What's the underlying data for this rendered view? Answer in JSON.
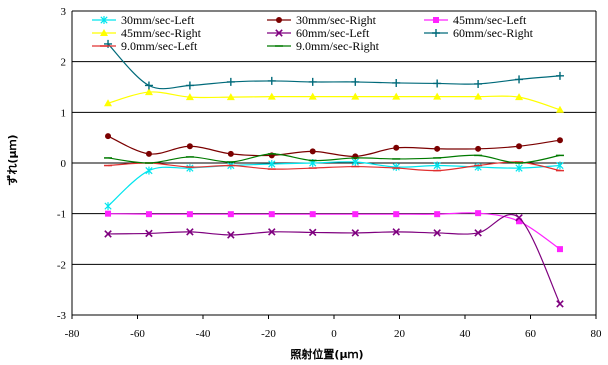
{
  "chart_data": {
    "type": "line",
    "xlabel": "照射位置(μｍ)",
    "ylabel": "ずれ(μｍ)",
    "xlim": [
      -80,
      80
    ],
    "ylim": [
      -3,
      3
    ],
    "xticks": [
      "-80",
      "-60",
      "-40",
      "-20",
      "0",
      "20",
      "40",
      "60",
      "80"
    ],
    "yticks": [
      "3",
      "2",
      "1",
      "0",
      "-1",
      "-2",
      "-3"
    ],
    "grid": "horizontal",
    "legend_position": "top",
    "x": [
      -69,
      -56.5,
      -44,
      -31.5,
      -19,
      -6.5,
      6.5,
      19,
      31.5,
      44,
      56.5,
      69
    ],
    "series": [
      {
        "name": "30mm/sec-Left",
        "color": "#00e5ee",
        "marker": "asterisk",
        "values": [
          -0.85,
          -0.15,
          -0.1,
          -0.05,
          -0.02,
          0.0,
          0.02,
          -0.08,
          -0.05,
          -0.08,
          -0.1,
          -0.05
        ]
      },
      {
        "name": "30mm/sec-Right",
        "color": "#7b0000",
        "marker": "circle",
        "values": [
          0.53,
          0.18,
          0.33,
          0.18,
          0.15,
          0.23,
          0.13,
          0.3,
          0.28,
          0.28,
          0.33,
          0.45
        ]
      },
      {
        "name": "45mm/sec-Left",
        "color": "#ff22ff",
        "marker": "square",
        "values": [
          -1.0,
          -1.01,
          -1.01,
          -1.01,
          -1.01,
          -1.01,
          -1.01,
          -1.01,
          -1.01,
          -0.99,
          -1.15,
          -1.7
        ]
      },
      {
        "name": "45mm/sec-Right",
        "color": "#ffff00",
        "marker": "triangle",
        "values": [
          1.18,
          1.4,
          1.3,
          1.3,
          1.31,
          1.31,
          1.31,
          1.31,
          1.31,
          1.31,
          1.3,
          1.05
        ]
      },
      {
        "name": "60mm/sec-Left",
        "color": "#7f007f",
        "marker": "cross",
        "values": [
          -1.4,
          -1.39,
          -1.36,
          -1.42,
          -1.36,
          -1.37,
          -1.38,
          -1.36,
          -1.38,
          -1.38,
          -1.08,
          -2.78
        ]
      },
      {
        "name": "60mm/sec-Right",
        "color": "#006a7a",
        "marker": "plus",
        "values": [
          2.35,
          1.53,
          1.53,
          1.6,
          1.62,
          1.6,
          1.6,
          1.58,
          1.57,
          1.56,
          1.65,
          1.72
        ]
      },
      {
        "name": "9.0mm/sec-Left",
        "color": "#e03030",
        "marker": "dash",
        "values": [
          -0.05,
          0.0,
          -0.08,
          -0.05,
          -0.12,
          -0.1,
          -0.07,
          -0.1,
          -0.15,
          -0.05,
          0.02,
          -0.15
        ]
      },
      {
        "name": "9.0mm/sec-Right",
        "color": "#007a00",
        "marker": "dash",
        "values": [
          0.1,
          0.0,
          0.12,
          0.02,
          0.18,
          0.05,
          0.1,
          0.08,
          0.1,
          0.15,
          0.0,
          0.15
        ]
      }
    ]
  }
}
